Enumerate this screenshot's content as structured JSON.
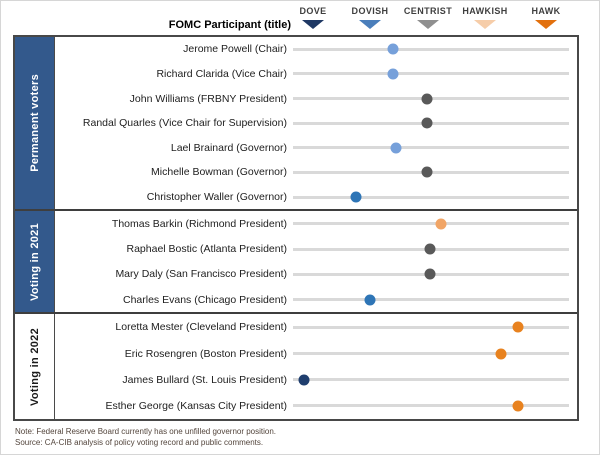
{
  "header": {
    "participant_col_label": "FOMC Participant (title)",
    "scale": [
      {
        "label": "DOVE",
        "color": "#1F3864"
      },
      {
        "label": "DOVISH",
        "color": "#4A7EBB"
      },
      {
        "label": "CENTRIST",
        "color": "#8F8F8F"
      },
      {
        "label": "HAWKISH",
        "color": "#F6CDA9"
      },
      {
        "label": "HAWK",
        "color": "#E2700D"
      }
    ]
  },
  "palette": {
    "dove": "#1F3E6E",
    "dovish": "#2E75B6",
    "dovish_light": "#76A0DA",
    "centrist": "#595959",
    "hawkish_light": "#F1A566",
    "hawk": "#E8821F"
  },
  "groups": [
    {
      "label": "Permanent voters",
      "sidebar_style": "blue",
      "participants": [
        {
          "name": "Jerome Powell (Chair)",
          "value": 1.4,
          "color": "dovish_light"
        },
        {
          "name": "Richard Clarida (Vice Chair)",
          "value": 1.4,
          "color": "dovish_light"
        },
        {
          "name": "John Williams (FRBNY President)",
          "value": 2.0,
          "color": "centrist"
        },
        {
          "name": "Randal Quarles (Vice Chair for Supervision)",
          "value": 2.0,
          "color": "centrist"
        },
        {
          "name": "Lael Brainard (Governor)",
          "value": 1.45,
          "color": "dovish_light"
        },
        {
          "name": "Michelle Bowman (Governor)",
          "value": 2.0,
          "color": "centrist"
        },
        {
          "name": "Christopher Waller (Governor)",
          "value": 0.75,
          "color": "dovish"
        }
      ]
    },
    {
      "label": "Voting in 2021",
      "sidebar_style": "blue",
      "participants": [
        {
          "name": "Thomas Barkin (Richmond President)",
          "value": 2.25,
          "color": "hawkish_light"
        },
        {
          "name": "Raphael Bostic (Atlanta President)",
          "value": 2.05,
          "color": "centrist"
        },
        {
          "name": "Mary Daly (San Francisco President)",
          "value": 2.05,
          "color": "centrist"
        },
        {
          "name": "Charles Evans (Chicago President)",
          "value": 1.0,
          "color": "dovish"
        }
      ]
    },
    {
      "label": "Voting in 2022",
      "sidebar_style": "plain",
      "participants": [
        {
          "name": "Loretta Mester (Cleveland President)",
          "value": 3.6,
          "color": "hawk"
        },
        {
          "name": "Eric Rosengren (Boston President)",
          "value": 3.3,
          "color": "hawk"
        },
        {
          "name": "James Bullard (St. Louis President)",
          "value": -0.15,
          "color": "dove"
        },
        {
          "name": "Esther George (Kansas City President)",
          "value": 3.6,
          "color": "hawk"
        }
      ]
    }
  ],
  "notes": {
    "note": "Note: Federal Reserve Board currently has one unfilled  governor position.",
    "source": "Source: CA-CIB analysis of policy voting record and public comments."
  },
  "chart_data": {
    "type": "scatter",
    "title": "FOMC Participant (title) — dove/hawk policy stance",
    "x_axis": {
      "labels": [
        "DOVE",
        "DOVISH",
        "CENTRIST",
        "HAWKISH",
        "HAWK"
      ],
      "values": [
        0,
        1,
        2,
        3,
        4
      ],
      "range": [
        -0.35,
        4.55
      ]
    },
    "legend_position": "top",
    "grid": false,
    "series": [
      {
        "name": "Permanent voters",
        "points": [
          {
            "label": "Jerome Powell (Chair)",
            "x": 1.4
          },
          {
            "label": "Richard Clarida (Vice Chair)",
            "x": 1.4
          },
          {
            "label": "John Williams (FRBNY President)",
            "x": 2.0
          },
          {
            "label": "Randal Quarles (Vice Chair for Supervision)",
            "x": 2.0
          },
          {
            "label": "Lael Brainard (Governor)",
            "x": 1.45
          },
          {
            "label": "Michelle Bowman (Governor)",
            "x": 2.0
          },
          {
            "label": "Christopher Waller (Governor)",
            "x": 0.75
          }
        ]
      },
      {
        "name": "Voting in 2021",
        "points": [
          {
            "label": "Thomas Barkin (Richmond President)",
            "x": 2.25
          },
          {
            "label": "Raphael Bostic (Atlanta President)",
            "x": 2.05
          },
          {
            "label": "Mary Daly (San Francisco President)",
            "x": 2.05
          },
          {
            "label": "Charles Evans (Chicago President)",
            "x": 1.0
          }
        ]
      },
      {
        "name": "Voting in 2022",
        "points": [
          {
            "label": "Loretta Mester (Cleveland President)",
            "x": 3.6
          },
          {
            "label": "Eric Rosengren (Boston President)",
            "x": 3.3
          },
          {
            "label": "James Bullard (St. Louis President)",
            "x": -0.15
          },
          {
            "label": "Esther George (Kansas City President)",
            "x": 3.6
          }
        ]
      }
    ]
  }
}
